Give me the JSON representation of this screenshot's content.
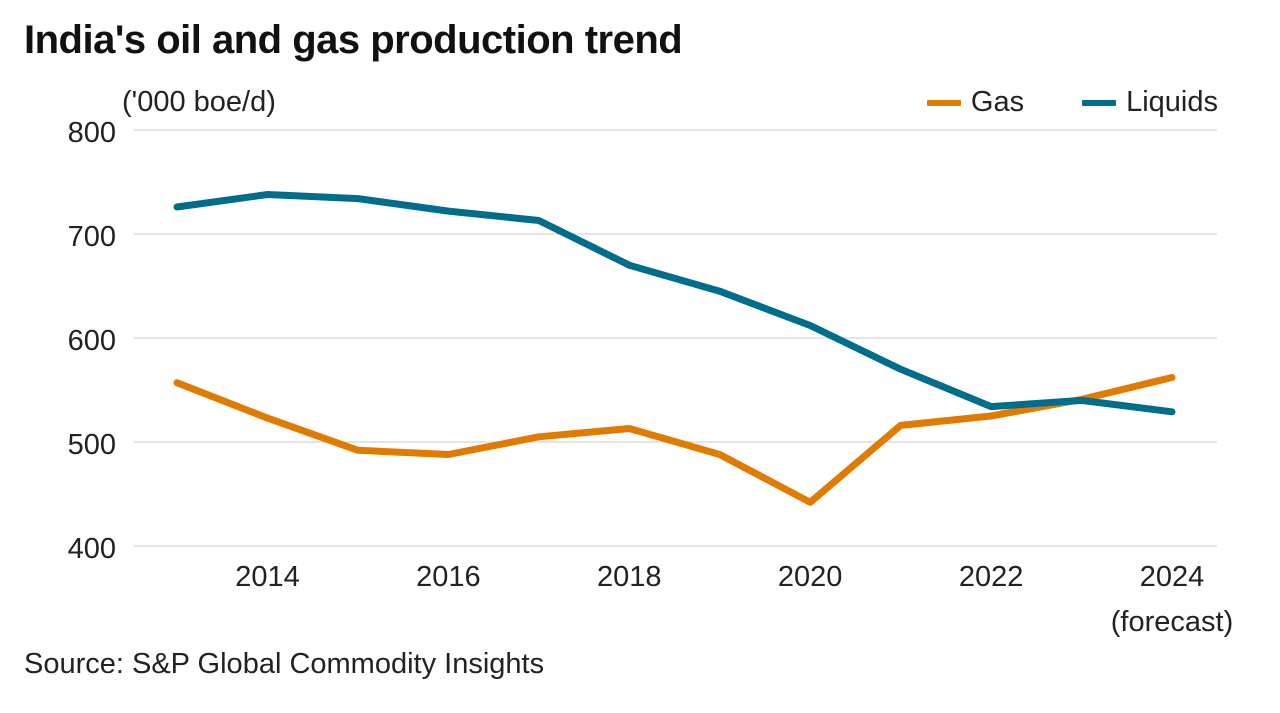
{
  "header": {
    "title": "India's oil and gas production trend",
    "unit_label": "('000 boe/d)"
  },
  "legend": {
    "items": [
      {
        "label": "Gas",
        "color": "#E07B00"
      },
      {
        "label": "Liquids",
        "color": "#006E8A"
      }
    ]
  },
  "footer": {
    "source": "Source: S&P Global Commodity Insights"
  },
  "chart_data": {
    "type": "line",
    "title": "India's oil and gas production trend",
    "xlabel": "",
    "ylabel": "('000 boe/d)",
    "x": [
      2013,
      2014,
      2015,
      2016,
      2017,
      2018,
      2019,
      2020,
      2021,
      2022,
      2023,
      2024
    ],
    "xlim": [
      2013,
      2024
    ],
    "ylim": [
      400,
      800
    ],
    "yticks": [
      400,
      500,
      600,
      700,
      800
    ],
    "xticks": [
      {
        "value": 2014,
        "label": "2014"
      },
      {
        "value": 2016,
        "label": "2016"
      },
      {
        "value": 2018,
        "label": "2018"
      },
      {
        "value": 2020,
        "label": "2020"
      },
      {
        "value": 2022,
        "label": "2022"
      },
      {
        "value": 2024,
        "label": "2024",
        "sublabel": "(forecast)"
      }
    ],
    "grid": "horizontal",
    "legend_position": "top-right",
    "series": [
      {
        "name": "Gas",
        "color": "#E07B00",
        "values": [
          557,
          523,
          492,
          488,
          505,
          513,
          488,
          442,
          516,
          525,
          541,
          562
        ]
      },
      {
        "name": "Liquids",
        "color": "#006E8A",
        "values": [
          726,
          738,
          734,
          722,
          713,
          670,
          645,
          612,
          570,
          534,
          540,
          529
        ]
      }
    ],
    "annotations": [
      "2024 (forecast)"
    ],
    "source": "Source: S&P Global Commodity Insights"
  }
}
